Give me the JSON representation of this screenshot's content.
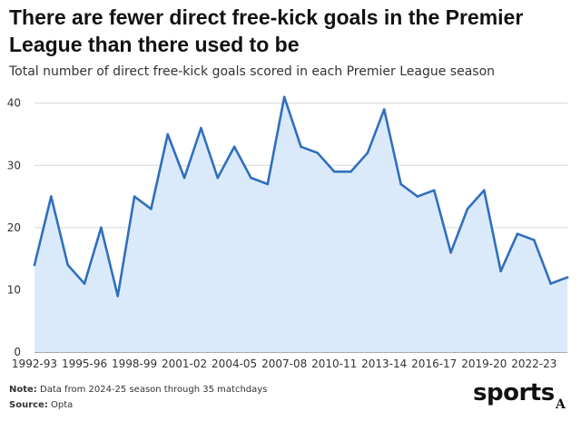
{
  "header": {
    "title": "There are fewer direct free-kick goals in the Premier League than there used to be",
    "subtitle": "Total number of direct free-kick goals scored in each Premier League season"
  },
  "footer": {
    "note_label": "Note:",
    "note_text": " Data from 2024-25 season through 35 matchdays",
    "source_label": "Source:",
    "source_text": " Opta"
  },
  "brand": {
    "logo_text": "sports",
    "logo_mark": "A"
  },
  "colors": {
    "line": "#2f6fbd",
    "area": "#dbeafb",
    "grid": "#d6d6d6",
    "axis": "#555555",
    "text": "#121212"
  },
  "chart_data": {
    "type": "area",
    "title": "There are fewer direct free-kick goals in the Premier League than there used to be",
    "subtitle": "Total number of direct free-kick goals scored in each Premier League season",
    "xlabel": "",
    "ylabel": "",
    "x": [
      "1992-93",
      "1993-94",
      "1994-95",
      "1995-96",
      "1996-97",
      "1997-98",
      "1998-99",
      "1999-00",
      "2000-01",
      "2001-02",
      "2002-03",
      "2003-04",
      "2004-05",
      "2005-06",
      "2006-07",
      "2007-08",
      "2008-09",
      "2009-10",
      "2010-11",
      "2011-12",
      "2012-13",
      "2013-14",
      "2014-15",
      "2015-16",
      "2016-17",
      "2017-18",
      "2018-19",
      "2019-20",
      "2020-21",
      "2021-22",
      "2022-23",
      "2023-24",
      "2024-25"
    ],
    "series": [
      {
        "values": [
          14,
          25,
          14,
          11,
          20,
          9,
          25,
          23,
          35,
          28,
          36,
          28,
          33,
          28,
          27,
          41,
          33,
          32,
          29,
          29,
          32,
          39,
          27,
          25,
          26,
          16,
          23,
          26,
          13,
          19,
          18,
          11,
          12
        ]
      }
    ],
    "x_tick_labels": [
      "1992-93",
      "1995-96",
      "1998-99",
      "2001-02",
      "2004-05",
      "2007-08",
      "2010-11",
      "2013-14",
      "2016-17",
      "2019-20",
      "2022-23"
    ],
    "y_ticks": [
      0,
      10,
      20,
      30,
      40
    ],
    "ylim": [
      0,
      42
    ],
    "grid": true,
    "legend": "none"
  }
}
